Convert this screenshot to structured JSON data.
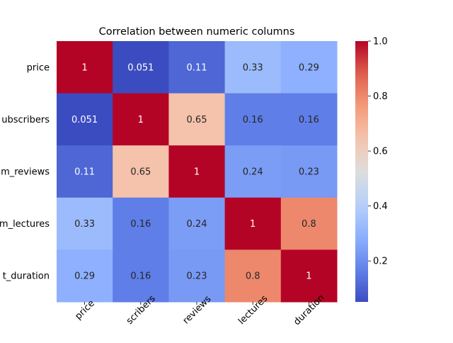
{
  "chart_data": {
    "type": "heatmap",
    "title": "Correlation between numeric columns",
    "x_labels": [
      "price",
      "subscribers",
      "num_reviews",
      "num_lectures",
      "content_duration"
    ],
    "y_labels": [
      "price",
      "num_subscribers",
      "num_reviews",
      "num_lectures",
      "content_duration"
    ],
    "x_labels_visible": [
      "price",
      "scribers",
      "reviews",
      "lectures",
      "duration"
    ],
    "y_labels_visible": [
      "price",
      "ubscribers",
      "m_reviews",
      "m_lectures",
      "t_duration"
    ],
    "matrix": [
      [
        1,
        0.051,
        0.11,
        0.33,
        0.29
      ],
      [
        0.051,
        1,
        0.65,
        0.16,
        0.16
      ],
      [
        0.11,
        0.65,
        1,
        0.24,
        0.23
      ],
      [
        0.33,
        0.16,
        0.24,
        1,
        0.8
      ],
      [
        0.29,
        0.16,
        0.23,
        0.8,
        1
      ]
    ],
    "annotations": [
      [
        "1",
        "0.051",
        "0.11",
        "0.33",
        "0.29"
      ],
      [
        "0.051",
        "1",
        "0.65",
        "0.16",
        "0.16"
      ],
      [
        "0.11",
        "0.65",
        "1",
        "0.24",
        "0.23"
      ],
      [
        "0.33",
        "0.16",
        "0.24",
        "1",
        "0.8"
      ],
      [
        "0.29",
        "0.16",
        "0.23",
        "0.8",
        "1"
      ]
    ],
    "colormap": "coolwarm",
    "colorbar": {
      "vmin": 0.051,
      "vmax": 1.0,
      "ticks": [
        0.2,
        0.4,
        0.6,
        0.8,
        1.0
      ],
      "tick_labels": [
        "0.2",
        "0.4",
        "0.6",
        "0.8",
        "1.0"
      ]
    },
    "x_tick_rotation_deg": 45
  }
}
